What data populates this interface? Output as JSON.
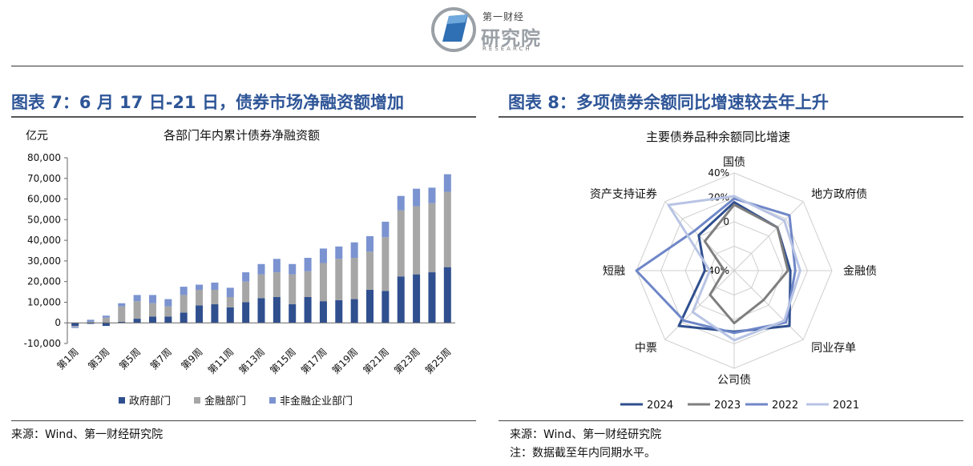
{
  "header": {
    "logo_small": "第一财经",
    "logo_big": "研究院",
    "logo_en": "RESEARCH"
  },
  "left": {
    "figure_title": "图表 7：6 月 17 日-21 日，债券市场净融资额增加",
    "source": "来源：Wind、第一财经研究院"
  },
  "right": {
    "figure_title": "图表 8：多项债券余额同比增速较去年上升",
    "source": "来源：Wind、第一财经研究院",
    "note": "注：数据截至年内同期水平。"
  },
  "colors": {
    "title_blue": "#2e5597",
    "gov": "#2f4f8f",
    "fin": "#a6a6a6",
    "nonfin": "#7b93d0",
    "s2024": "#2f4f8f",
    "s2023": "#7f7f7f",
    "s2022": "#6f87c8",
    "s2021": "#b8c4e4"
  },
  "chart_data": [
    {
      "type": "bar",
      "stacked": true,
      "title": "各部门年内累计债券净融资额",
      "ylabel": "亿元",
      "ylim": [
        -10000,
        80000
      ],
      "yticks": [
        -10000,
        0,
        10000,
        20000,
        30000,
        40000,
        50000,
        60000,
        70000,
        80000
      ],
      "ytick_labels": [
        "-10,000",
        "0",
        "10,000",
        "20,000",
        "30,000",
        "40,000",
        "50,000",
        "60,000",
        "70,000",
        "80,000"
      ],
      "categories": [
        "第1周",
        "第2周",
        "第3周",
        "第4周",
        "第5周",
        "第6周",
        "第7周",
        "第8周",
        "第9周",
        "第10周",
        "第11周",
        "第12周",
        "第13周",
        "第14周",
        "第15周",
        "第16周",
        "第17周",
        "第18周",
        "第19周",
        "第20周",
        "第21周",
        "第22周",
        "第23周",
        "第24周",
        "第25周"
      ],
      "xtick_labels": [
        "第1周",
        "",
        "第3周",
        "",
        "第5周",
        "",
        "第7周",
        "",
        "第9周",
        "",
        "第11周",
        "",
        "第13周",
        "",
        "第15周",
        "",
        "第17周",
        "",
        "第19周",
        "",
        "第21周",
        "",
        "第23周",
        "",
        "第25周"
      ],
      "series": [
        {
          "name": "政府部门",
          "values": [
            -1500,
            -500,
            -1500,
            500,
            2000,
            3000,
            3000,
            5000,
            8500,
            9000,
            7500,
            10000,
            12000,
            12500,
            9000,
            12500,
            10500,
            11000,
            11500,
            16000,
            15500,
            22500,
            23500,
            24500,
            27000
          ]
        },
        {
          "name": "金融部门",
          "values": [
            -500,
            500,
            2500,
            7500,
            8500,
            6500,
            5000,
            8500,
            7500,
            7000,
            5000,
            10000,
            11500,
            12000,
            14500,
            12500,
            18500,
            20000,
            20000,
            18500,
            26000,
            32000,
            33000,
            33500,
            36500
          ]
        },
        {
          "name": "非金融企业部门",
          "values": [
            -500,
            1000,
            1000,
            1500,
            3000,
            4000,
            3500,
            4000,
            2500,
            3500,
            4500,
            4500,
            5000,
            6500,
            5000,
            6500,
            7000,
            6000,
            7500,
            7500,
            7500,
            7000,
            8500,
            7500,
            8500
          ]
        }
      ],
      "legend": "bottom"
    },
    {
      "type": "radar",
      "title": "主要债券品种余额同比增速",
      "axes": [
        "国债",
        "地方政府债",
        "金融债",
        "同业存单",
        "公司债",
        "中票",
        "短融",
        "资产支持证券"
      ],
      "rlim": [
        -40,
        40
      ],
      "rticks": [
        -40,
        0,
        20,
        40
      ],
      "rtick_labels": [
        "-40%",
        "0",
        "20%",
        "40%"
      ],
      "series": [
        {
          "name": "2024",
          "values": [
            16,
            10,
            6,
            24,
            10,
            24,
            -16,
            1
          ]
        },
        {
          "name": "2023",
          "values": [
            14,
            10,
            4,
            -6,
            3,
            -12,
            -32,
            -6
          ]
        },
        {
          "name": "2022",
          "values": [
            19,
            24,
            10,
            20,
            11,
            18,
            40,
            6
          ]
        },
        {
          "name": "2021",
          "values": [
            21,
            18,
            14,
            18,
            17,
            8,
            -20,
            36
          ]
        }
      ],
      "legend": "bottom"
    }
  ]
}
